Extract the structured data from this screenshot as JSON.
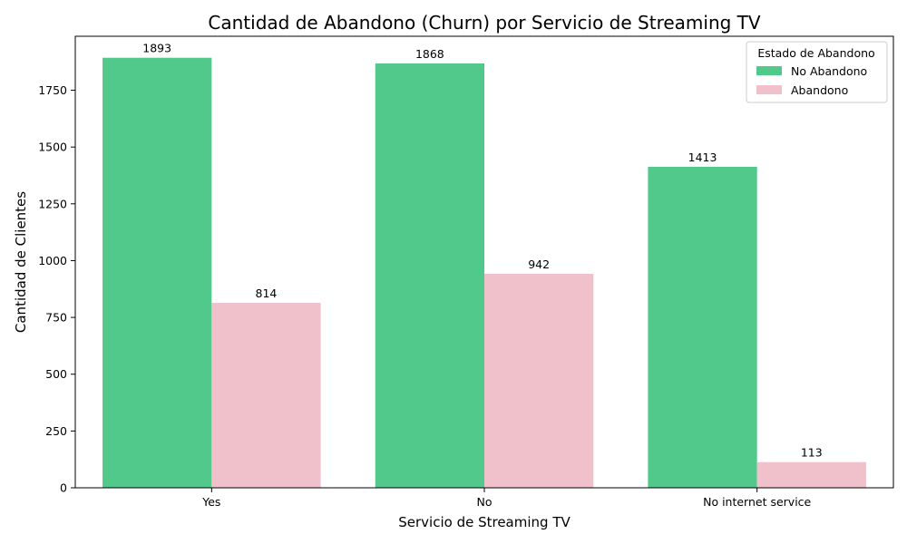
{
  "chart_data": {
    "type": "bar",
    "title": "Cantidad de Abandono (Churn) por Servicio de Streaming TV",
    "xlabel": "Servicio de Streaming TV",
    "ylabel": "Cantidad de Clientes",
    "categories": [
      "Yes",
      "No",
      "No internet service"
    ],
    "series": [
      {
        "name": "No Abandono",
        "values": [
          1893,
          1868,
          1413
        ],
        "color": "#50c98a"
      },
      {
        "name": "Abandono",
        "values": [
          814,
          942,
          113
        ],
        "color": "#f0c1cb"
      }
    ],
    "ylim": [
      0,
      1987.65
    ],
    "yticks": [
      0,
      250,
      500,
      750,
      1000,
      1250,
      1500,
      1750
    ],
    "grid": false,
    "legend": {
      "title": "Estado de Abandono",
      "placement": "top-right"
    },
    "data_labels": true
  }
}
